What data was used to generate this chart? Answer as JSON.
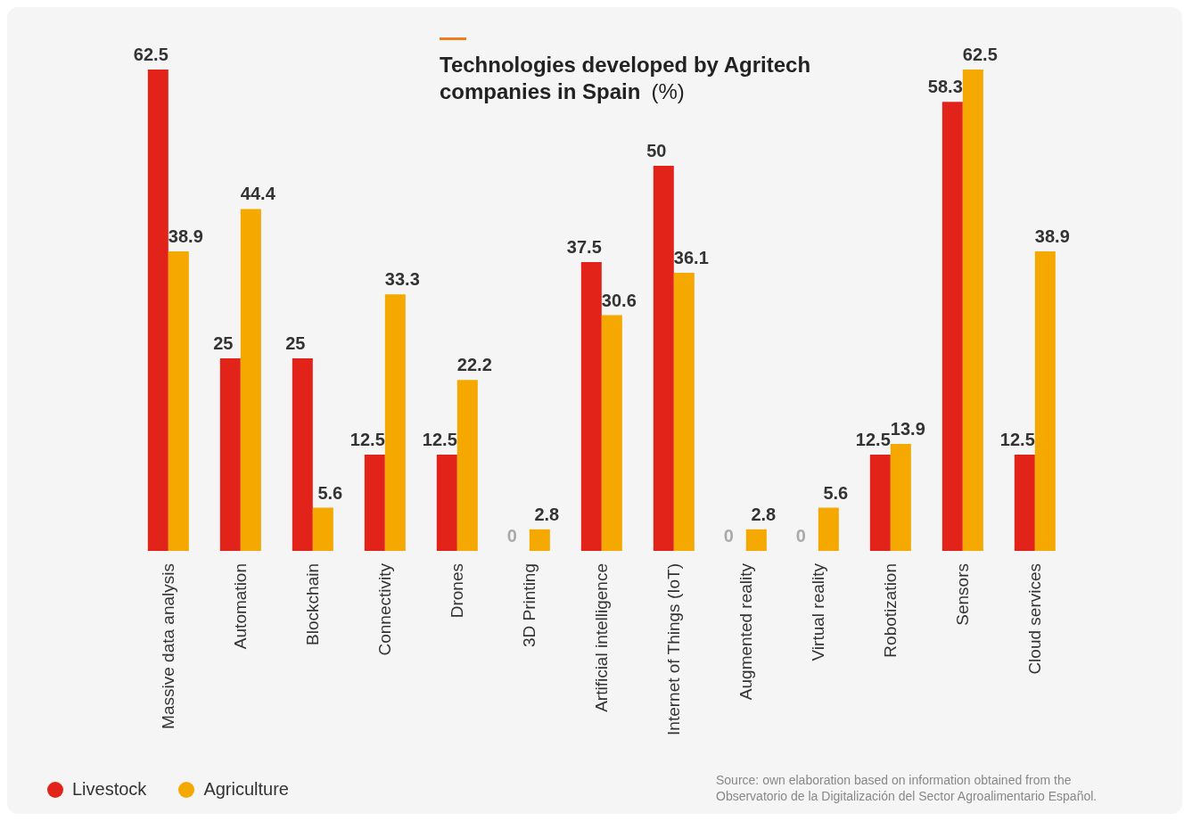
{
  "chart_data": {
    "type": "bar",
    "title": "Technologies developed by Agritech companies in Spain",
    "subtitle": "(%)",
    "categories": [
      "Massive data analysis",
      "Automation",
      "Blockchain",
      "Connectivity",
      "Drones",
      "3D Printing",
      "Artificial intelligence",
      "Internet of Things (IoT)",
      "Augmented reality",
      "Virtual reality",
      "Robotization",
      "Sensors",
      "Cloud services"
    ],
    "series": [
      {
        "name": "Livestock",
        "color": "#e2231a",
        "values": [
          62.5,
          25,
          25,
          12.5,
          12.5,
          0,
          37.5,
          50,
          0,
          0,
          12.5,
          58.3,
          12.5
        ]
      },
      {
        "name": "Agriculture",
        "color": "#f5a800",
        "values": [
          38.9,
          44.4,
          5.6,
          33.3,
          22.2,
          2.8,
          30.6,
          36.1,
          2.8,
          5.6,
          13.9,
          62.5,
          38.9
        ]
      }
    ],
    "data_labels": true,
    "legend": "bottom left",
    "grid": false,
    "annotations": [
      "Source: own elaboration based on information obtained from the Observatorio de la Digitalización del Sector Agroalimentario Español."
    ]
  }
}
